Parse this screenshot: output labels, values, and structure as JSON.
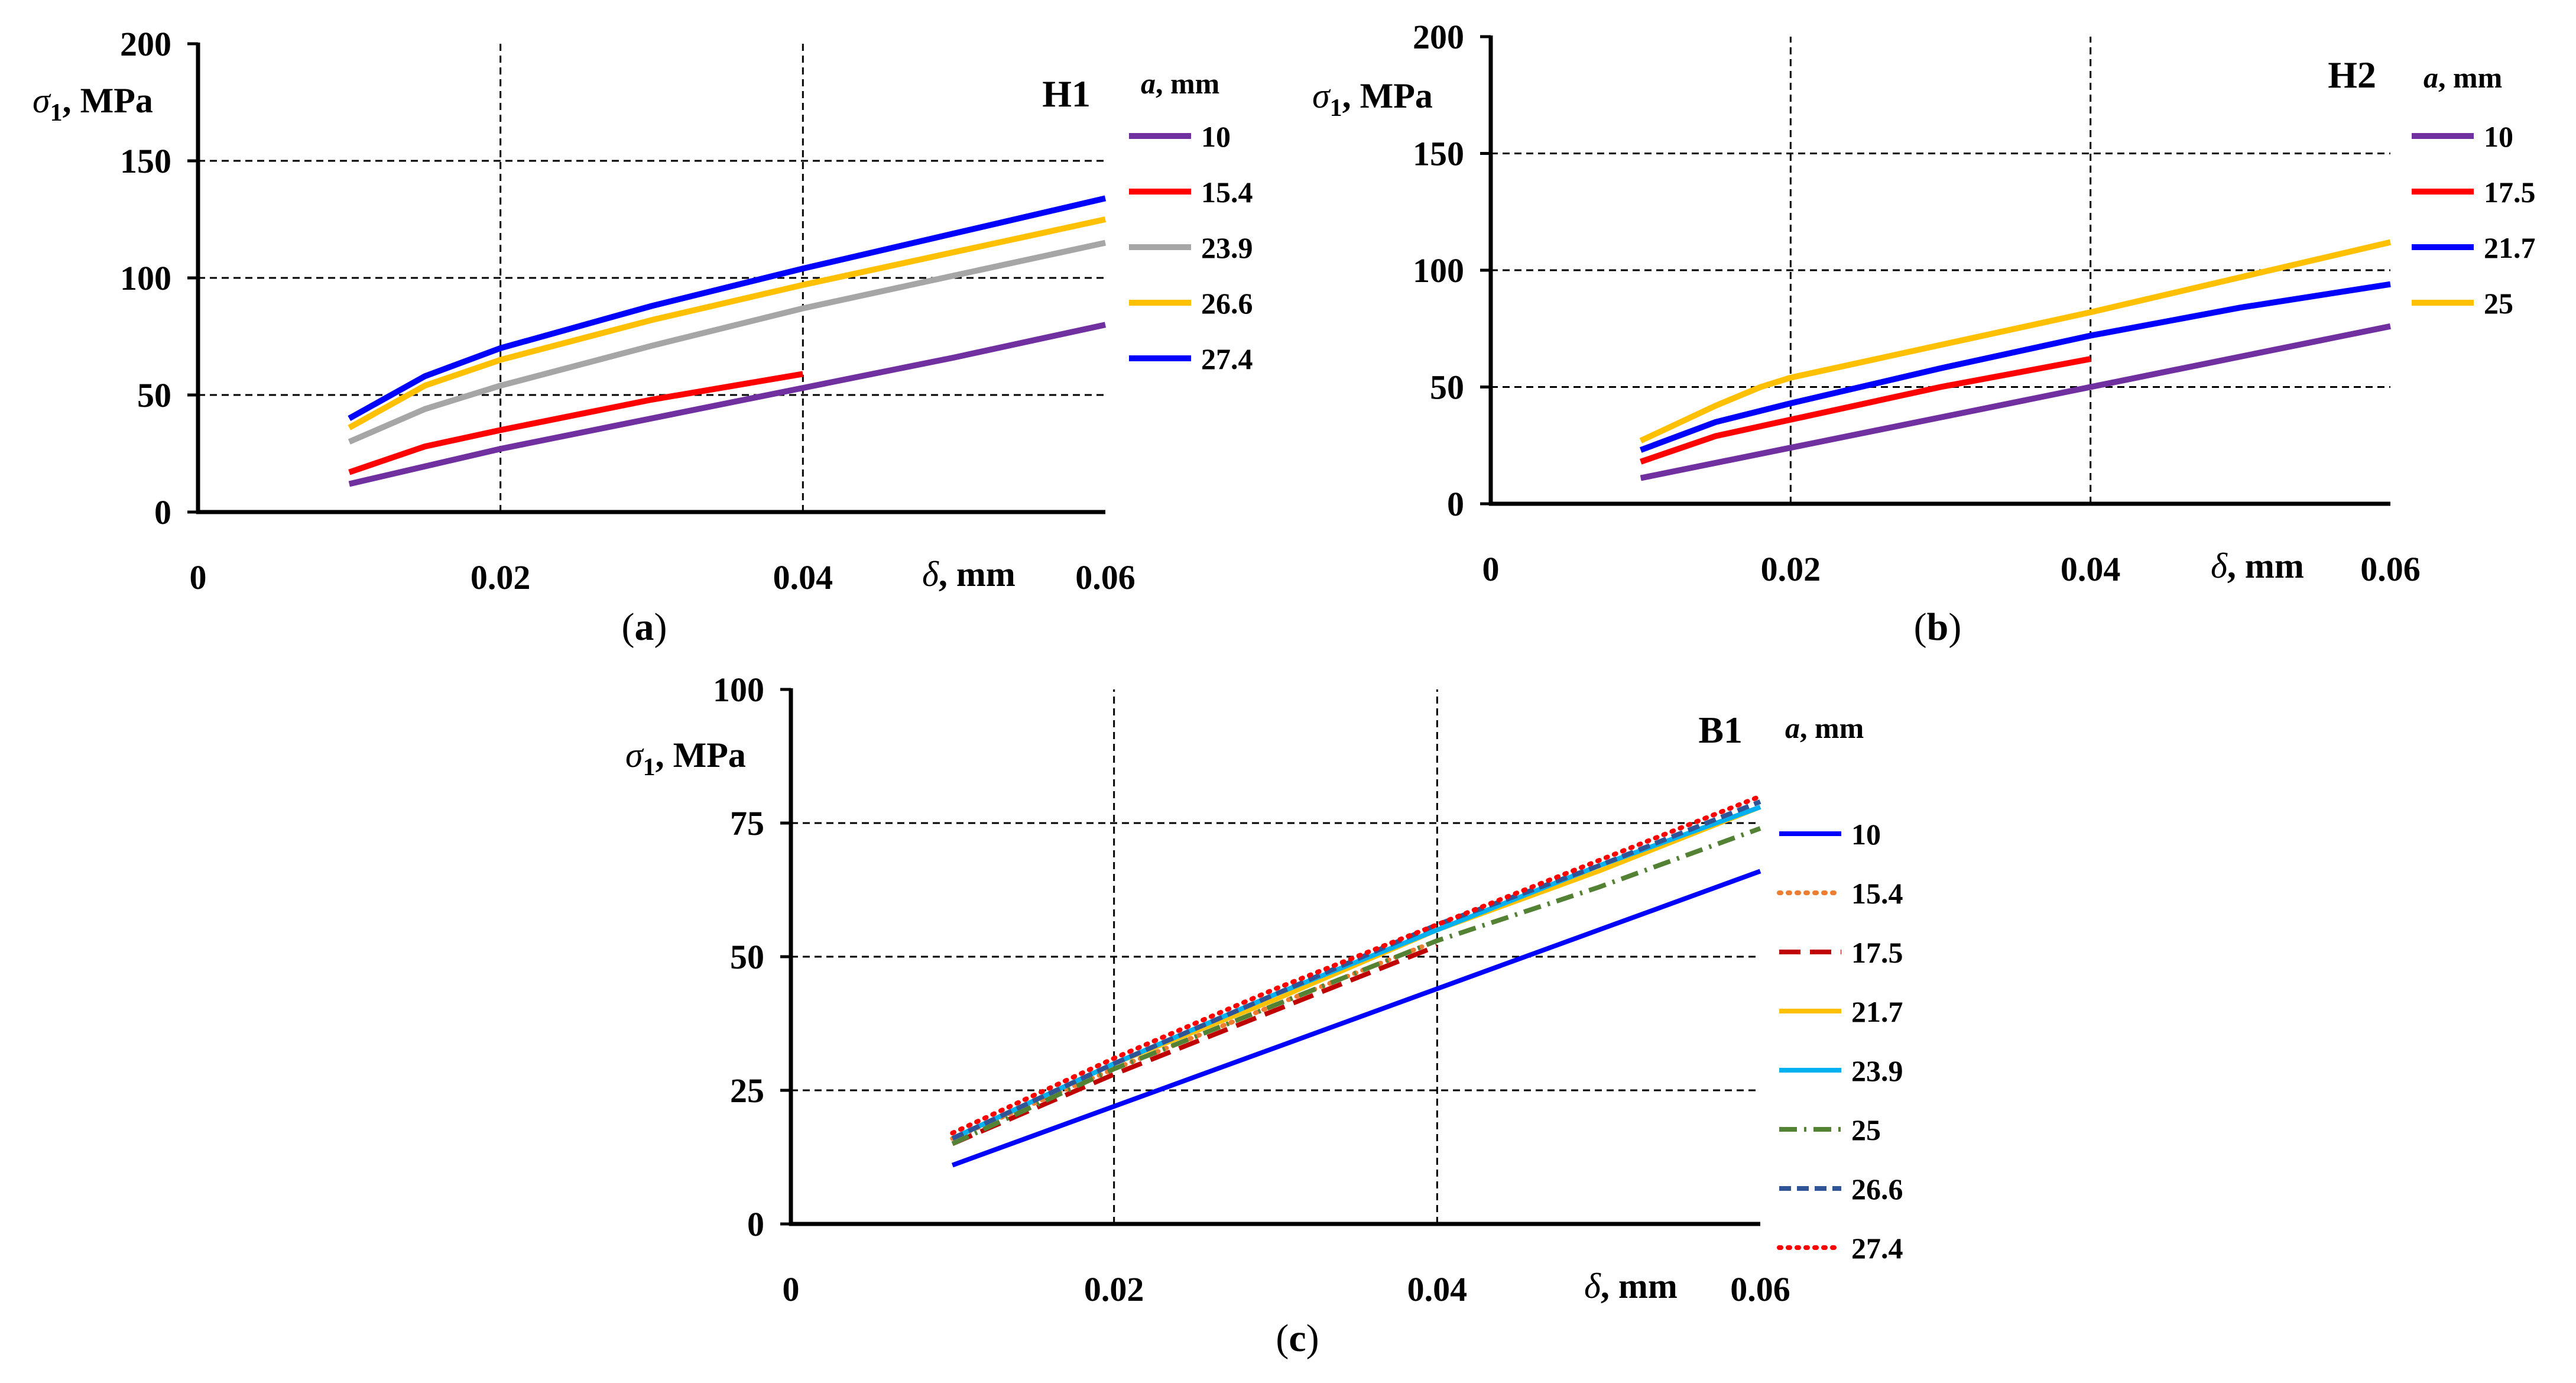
{
  "chart_data": [
    {
      "type": "line",
      "title": "H1",
      "caption": "a",
      "xlabel_sym": "δ",
      "xlabel_unit": ", mm",
      "ylabel_sym": "σ",
      "ylabel_sub": "1",
      "ylabel_unit": ", MPa",
      "legend_title_sym": "a",
      "legend_title_unit": ", mm",
      "xlim": [
        0,
        0.06
      ],
      "ylim": [
        0,
        200
      ],
      "xticks": [
        0,
        0.02,
        0.04,
        0.06
      ],
      "xtick_labels": [
        "0",
        "0.02",
        "0.04",
        "0.06"
      ],
      "yticks": [
        0,
        50,
        100,
        150,
        200
      ],
      "ytick_labels": [
        "0",
        "50",
        "100",
        "150",
        "200"
      ],
      "grid": true,
      "legend_position": "right",
      "series": [
        {
          "name": "10",
          "color": "#7030A0",
          "dash": "solid",
          "x": [
            0.01,
            0.02,
            0.03,
            0.04,
            0.05,
            0.06
          ],
          "y": [
            12,
            27,
            40,
            53,
            66,
            80
          ]
        },
        {
          "name": "15.4",
          "color": "#FF0000",
          "dash": "solid",
          "x": [
            0.01,
            0.015,
            0.02,
            0.03,
            0.04
          ],
          "y": [
            17,
            28,
            35,
            48,
            59
          ]
        },
        {
          "name": "23.9",
          "color": "#A6A6A6",
          "dash": "solid",
          "x": [
            0.01,
            0.015,
            0.02,
            0.03,
            0.04,
            0.05,
            0.06
          ],
          "y": [
            30,
            44,
            54,
            71,
            87,
            101,
            115
          ]
        },
        {
          "name": "26.6",
          "color": "#FFC000",
          "dash": "solid",
          "x": [
            0.01,
            0.015,
            0.02,
            0.03,
            0.04,
            0.05,
            0.06
          ],
          "y": [
            36,
            54,
            65,
            82,
            97,
            111,
            125
          ]
        },
        {
          "name": "27.4",
          "color": "#0000FF",
          "dash": "solid",
          "x": [
            0.01,
            0.015,
            0.02,
            0.03,
            0.04,
            0.05,
            0.06
          ],
          "y": [
            40,
            58,
            70,
            88,
            104,
            119,
            134
          ]
        }
      ]
    },
    {
      "type": "line",
      "title": "H2",
      "caption": "b",
      "xlabel_sym": "δ",
      "xlabel_unit": ", mm",
      "ylabel_sym": "σ",
      "ylabel_sub": "1",
      "ylabel_unit": ", MPa",
      "legend_title_sym": "a",
      "legend_title_unit": ", mm",
      "xlim": [
        0,
        0.06
      ],
      "ylim": [
        0,
        200
      ],
      "xticks": [
        0,
        0.02,
        0.04,
        0.06
      ],
      "xtick_labels": [
        "0",
        "0.02",
        "0.04",
        "0.06"
      ],
      "yticks": [
        0,
        50,
        100,
        150,
        200
      ],
      "ytick_labels": [
        "0",
        "50",
        "100",
        "150",
        "200"
      ],
      "grid": true,
      "legend_position": "right",
      "series": [
        {
          "name": "10",
          "color": "#7030A0",
          "dash": "solid",
          "x": [
            0.01,
            0.02,
            0.03,
            0.04,
            0.05,
            0.06
          ],
          "y": [
            11,
            24,
            37,
            50,
            63,
            76
          ]
        },
        {
          "name": "17.5",
          "color": "#FF0000",
          "dash": "solid",
          "x": [
            0.01,
            0.015,
            0.02,
            0.03,
            0.04
          ],
          "y": [
            18,
            29,
            36,
            50,
            62
          ]
        },
        {
          "name": "21.7",
          "color": "#0000FF",
          "dash": "solid",
          "x": [
            0.01,
            0.015,
            0.02,
            0.03,
            0.04,
            0.05,
            0.06
          ],
          "y": [
            23,
            35,
            43,
            58,
            72,
            84,
            94
          ]
        },
        {
          "name": "25",
          "color": "#FFC000",
          "dash": "solid",
          "x": [
            0.01,
            0.015,
            0.018,
            0.02,
            0.03,
            0.04,
            0.05,
            0.06
          ],
          "y": [
            27,
            42,
            50,
            54,
            68,
            82,
            97,
            112
          ]
        }
      ]
    },
    {
      "type": "line",
      "title": "B1",
      "caption": "c",
      "xlabel_sym": "δ",
      "xlabel_unit": ", mm",
      "ylabel_sym": "σ",
      "ylabel_sub": "1",
      "ylabel_unit": ", MPa",
      "legend_title_sym": "a",
      "legend_title_unit": ", mm",
      "xlim": [
        0,
        0.06
      ],
      "ylim": [
        0,
        100
      ],
      "xticks": [
        0,
        0.02,
        0.04,
        0.06
      ],
      "xtick_labels": [
        "0",
        "0.02",
        "0.04",
        "0.06"
      ],
      "yticks": [
        0,
        25,
        50,
        75,
        100
      ],
      "ytick_labels": [
        "0",
        "25",
        "50",
        "75",
        "100"
      ],
      "grid": true,
      "legend_position": "right",
      "series": [
        {
          "name": "10",
          "color": "#0000FF",
          "dash": "solid",
          "x": [
            0.01,
            0.02,
            0.03,
            0.04,
            0.05,
            0.06
          ],
          "y": [
            11,
            22,
            33,
            44,
            55,
            66
          ]
        },
        {
          "name": "15.4",
          "color": "#ED7D31",
          "dash": "dot",
          "x": [
            0.01,
            0.02,
            0.03,
            0.04
          ],
          "y": [
            16,
            29,
            41,
            53
          ]
        },
        {
          "name": "17.5",
          "color": "#C00000",
          "dash": "dash",
          "x": [
            0.01,
            0.02,
            0.03,
            0.04
          ],
          "y": [
            15,
            28,
            40,
            52
          ]
        },
        {
          "name": "21.7",
          "color": "#FFC000",
          "dash": "solid",
          "x": [
            0.01,
            0.02,
            0.03,
            0.04,
            0.05,
            0.06
          ],
          "y": [
            16,
            30,
            42,
            55,
            66,
            78
          ]
        },
        {
          "name": "23.9",
          "color": "#00B0F0",
          "dash": "solid",
          "x": [
            0.01,
            0.02,
            0.03,
            0.04,
            0.05,
            0.06
          ],
          "y": [
            16,
            30,
            43,
            55,
            67,
            78
          ]
        },
        {
          "name": "25",
          "color": "#548235",
          "dash": "dashdot",
          "x": [
            0.01,
            0.02,
            0.03,
            0.04,
            0.05,
            0.06
          ],
          "y": [
            15,
            29,
            41,
            53,
            63,
            74
          ]
        },
        {
          "name": "26.6",
          "color": "#2F5597",
          "dash": "dash-short",
          "x": [
            0.01,
            0.02,
            0.03,
            0.04,
            0.05,
            0.06
          ],
          "y": [
            16,
            30,
            43,
            56,
            67,
            79
          ]
        },
        {
          "name": "27.4",
          "color": "#FF0000",
          "dash": "dot",
          "x": [
            0.01,
            0.02,
            0.03,
            0.04,
            0.05,
            0.06
          ],
          "y": [
            17,
            31,
            44,
            56,
            68,
            80
          ]
        }
      ]
    }
  ]
}
